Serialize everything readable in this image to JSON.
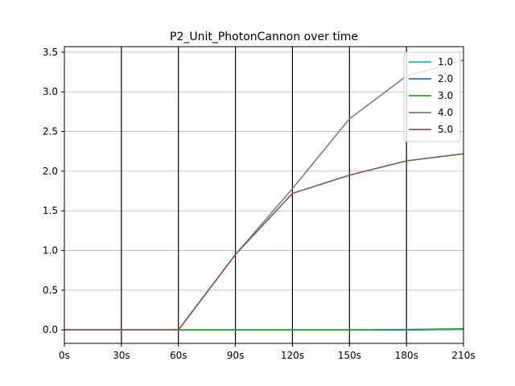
{
  "chart_data": {
    "type": "line",
    "title": "P2_Unit_PhotonCannon over time",
    "xlabel": "",
    "ylabel": "",
    "x": [
      0,
      30,
      60,
      90,
      120,
      150,
      180,
      210
    ],
    "x_tick_labels": [
      "0s",
      "30s",
      "60s",
      "90s",
      "120s",
      "150s",
      "180s",
      "210s"
    ],
    "xlim": [
      0,
      210
    ],
    "y_ticks": [
      0.0,
      0.5,
      1.0,
      1.5,
      2.0,
      2.5,
      3.0,
      3.5
    ],
    "y_tick_labels": [
      "0.0",
      "0.5",
      "1.0",
      "1.5",
      "2.0",
      "2.5",
      "3.0",
      "3.5"
    ],
    "ylim": [
      -0.17,
      3.57
    ],
    "grid": {
      "horizontal": true,
      "vertical_lines_at_x_ticks": true
    },
    "legend_position": "top-right",
    "series": [
      {
        "name": "1.0",
        "color": "#17becf",
        "values": [
          0,
          0,
          0,
          0,
          0,
          0,
          0,
          0.01
        ]
      },
      {
        "name": "2.0",
        "color": "#1f77b4",
        "values": [
          0,
          0,
          0,
          0,
          0,
          0,
          0,
          0.01
        ]
      },
      {
        "name": "3.0",
        "color": "#2ca02c",
        "values": [
          0,
          0,
          0,
          0,
          0,
          0,
          0.005,
          0.015
        ]
      },
      {
        "name": "4.0",
        "color": "#7f7f7f",
        "values": [
          0,
          0,
          0,
          0.95,
          1.78,
          2.66,
          3.2,
          3.4
        ]
      },
      {
        "name": "5.0",
        "color": "#8c564b",
        "values": [
          0,
          0,
          0,
          0.95,
          1.72,
          1.95,
          2.13,
          2.22
        ]
      }
    ]
  }
}
